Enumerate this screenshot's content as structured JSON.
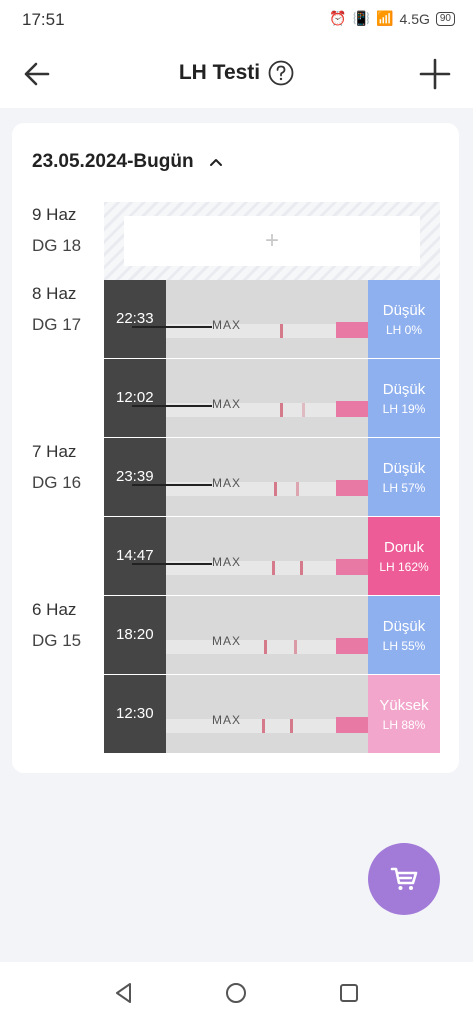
{
  "status_bar": {
    "time": "17:51",
    "network": "4.5G",
    "battery": "90"
  },
  "header": {
    "title": "LH Testi"
  },
  "card": {
    "date_range": "23.05.2024-Bugün",
    "days": [
      {
        "date": "9 Haz",
        "cycle_day": "DG 18"
      },
      {
        "date": "8 Haz",
        "cycle_day": "DG 17"
      },
      {
        "date": "7 Haz",
        "cycle_day": "DG 16"
      },
      {
        "date": "6 Haz",
        "cycle_day": "DG 15"
      }
    ],
    "empty_slot_symbol": "+",
    "tests": [
      {
        "time": "22:33",
        "level": "Düşük",
        "lh": "LH 0%",
        "color": "#8fb0ef"
      },
      {
        "time": "12:02",
        "level": "Düşük",
        "lh": "LH 19%",
        "color": "#8fb0ef"
      },
      {
        "time": "23:39",
        "level": "Düşük",
        "lh": "LH 57%",
        "color": "#8fb0ef"
      },
      {
        "time": "14:47",
        "level": "Doruk",
        "lh": "LH 162%",
        "color": "#ee5c97"
      },
      {
        "time": "18:20",
        "level": "Düşük",
        "lh": "LH 55%",
        "color": "#8fb0ef"
      },
      {
        "time": "12:30",
        "level": "Yüksek",
        "lh": "LH 88%",
        "color": "#f3a6cb"
      }
    ],
    "strip_label": "MAX"
  },
  "icons": {
    "back": "arrow-left-icon",
    "help": "question-circle-icon",
    "add": "plus-icon",
    "expand": "chevron-up-icon",
    "cart": "shopping-cart-icon"
  },
  "colors": {
    "fab": "#a27bd9",
    "low": "#8fb0ef",
    "peak": "#ee5c97",
    "high": "#f3a6cb"
  }
}
